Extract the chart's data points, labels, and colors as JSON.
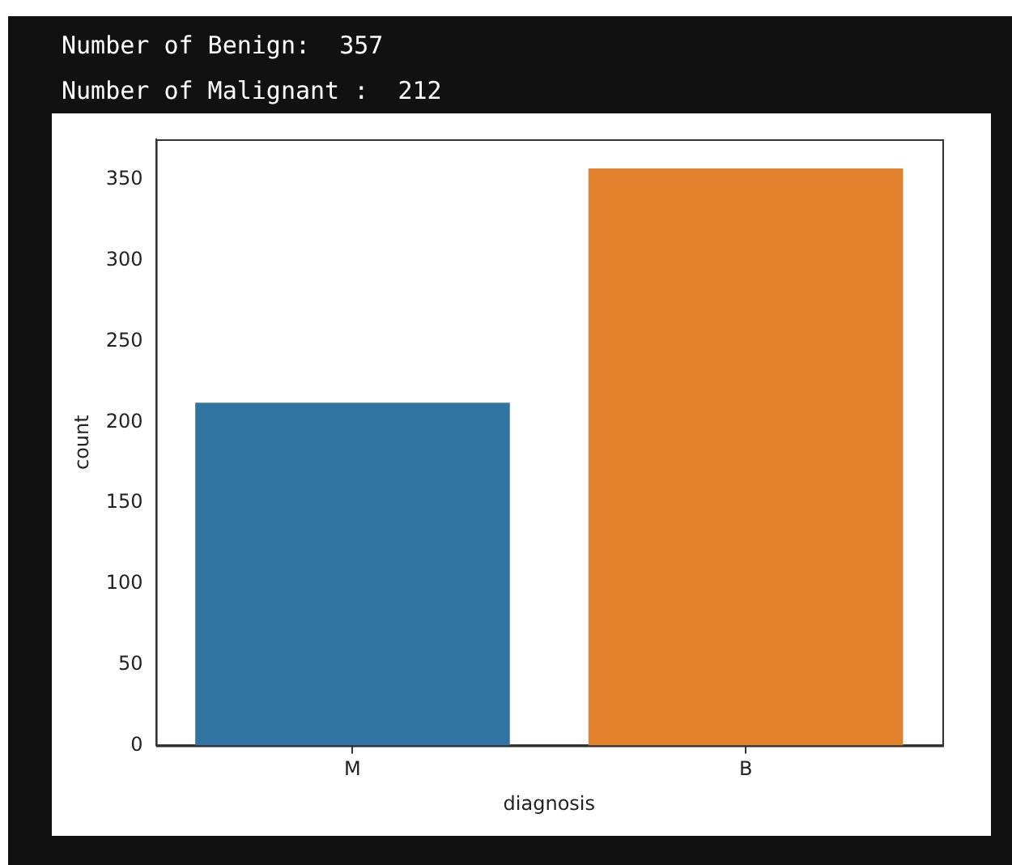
{
  "chart_data": {
    "type": "bar",
    "annotations": [
      "Number of Benign:  357",
      "Number of Malignant :  212"
    ],
    "xlabel": "diagnosis",
    "ylabel": "count",
    "categories": [
      "M",
      "B"
    ],
    "values": [
      212,
      357
    ],
    "colors": [
      "#3274a1",
      "#e1812c"
    ],
    "ylim": [
      0,
      375
    ],
    "yticks": [
      0,
      50,
      100,
      150,
      200,
      250,
      300,
      350
    ],
    "grid": false,
    "legend": false
  }
}
